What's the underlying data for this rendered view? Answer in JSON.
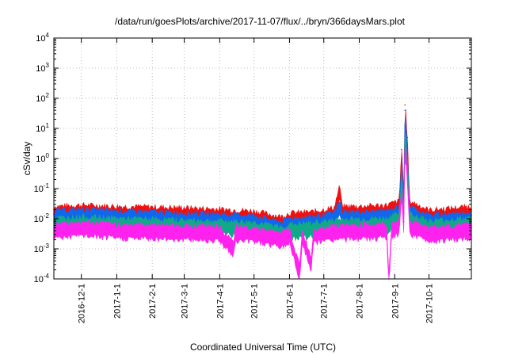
{
  "chart_data": {
    "type": "area",
    "title": "/data/run/goesPlots/archive/2017-11-07/flux/../bryn/366daysMars.plot",
    "xlabel": "Coordinated Universal Time (UTC)",
    "ylabel": "cSv/day",
    "y_scale": "log",
    "ylim": [
      0.0001,
      10000
    ],
    "y_ticks": [
      {
        "base": "10",
        "exp": "-4"
      },
      {
        "base": "10",
        "exp": "-3"
      },
      {
        "base": "10",
        "exp": "-2"
      },
      {
        "base": "10",
        "exp": "-1"
      },
      {
        "base": "10",
        "exp": "0"
      },
      {
        "base": "10",
        "exp": "1"
      },
      {
        "base": "10",
        "exp": "2"
      },
      {
        "base": "10",
        "exp": "3"
      },
      {
        "base": "10",
        "exp": "4"
      }
    ],
    "xlim": [
      "2016-11-07",
      "2017-11-07"
    ],
    "x_ticks": [
      "2016-12-1",
      "2017-1-1",
      "2017-2-1",
      "2017-3-1",
      "2017-4-1",
      "2017-5-1",
      "2017-6-1",
      "2017-7-1",
      "2017-8-1",
      "2017-9-1",
      "2017-10-1"
    ],
    "grid": true,
    "series": [
      {
        "color": "#ee1111",
        "points": [
          [
            "2016-11-07",
            0.02
          ],
          [
            "2016-12-01",
            0.022
          ],
          [
            "2017-01-01",
            0.02
          ],
          [
            "2017-02-01",
            0.019
          ],
          [
            "2017-03-01",
            0.018
          ],
          [
            "2017-04-01",
            0.016
          ],
          [
            "2017-05-01",
            0.014
          ],
          [
            "2017-05-25",
            0.009
          ],
          [
            "2017-06-01",
            0.012
          ],
          [
            "2017-06-20",
            0.013
          ],
          [
            "2017-07-10",
            0.018
          ],
          [
            "2017-07-15",
            0.1
          ],
          [
            "2017-07-17",
            0.02
          ],
          [
            "2017-08-01",
            0.02
          ],
          [
            "2017-08-25",
            0.022
          ],
          [
            "2017-09-05",
            0.03
          ],
          [
            "2017-09-07",
            2
          ],
          [
            "2017-09-09",
            0.05
          ],
          [
            "2017-09-10",
            60
          ],
          [
            "2017-09-12",
            5
          ],
          [
            "2017-09-14",
            0.03
          ],
          [
            "2017-10-01",
            0.015
          ],
          [
            "2017-11-07",
            0.02
          ]
        ]
      },
      {
        "color": "#1166ee",
        "points": [
          [
            "2016-11-07",
            0.014
          ],
          [
            "2016-12-01",
            0.016
          ],
          [
            "2017-01-01",
            0.014
          ],
          [
            "2017-02-01",
            0.013
          ],
          [
            "2017-03-01",
            0.012
          ],
          [
            "2017-04-01",
            0.011
          ],
          [
            "2017-05-01",
            0.01
          ],
          [
            "2017-05-25",
            0.006
          ],
          [
            "2017-06-01",
            0.008
          ],
          [
            "2017-06-20",
            0.009
          ],
          [
            "2017-07-10",
            0.012
          ],
          [
            "2017-07-15",
            0.03
          ],
          [
            "2017-07-17",
            0.013
          ],
          [
            "2017-08-01",
            0.013
          ],
          [
            "2017-08-25",
            0.014
          ],
          [
            "2017-09-05",
            0.02
          ],
          [
            "2017-09-07",
            0.9
          ],
          [
            "2017-09-09",
            0.03
          ],
          [
            "2017-09-10",
            40
          ],
          [
            "2017-09-12",
            2
          ],
          [
            "2017-09-14",
            0.02
          ],
          [
            "2017-10-01",
            0.01
          ],
          [
            "2017-11-07",
            0.013
          ]
        ]
      },
      {
        "color": "#11aa88",
        "points": [
          [
            "2016-11-07",
            0.008
          ],
          [
            "2016-12-01",
            0.009
          ],
          [
            "2017-01-01",
            0.008
          ],
          [
            "2017-02-01",
            0.0075
          ],
          [
            "2017-03-01",
            0.007
          ],
          [
            "2017-04-01",
            0.0065
          ],
          [
            "2017-05-01",
            0.006
          ],
          [
            "2017-05-25",
            0.004
          ],
          [
            "2017-06-01",
            0.005
          ],
          [
            "2017-06-20",
            0.0055
          ],
          [
            "2017-07-10",
            0.007
          ],
          [
            "2017-07-17",
            0.0075
          ],
          [
            "2017-08-01",
            0.0075
          ],
          [
            "2017-08-25",
            0.008
          ],
          [
            "2017-09-05",
            0.012
          ],
          [
            "2017-09-07",
            0.3
          ],
          [
            "2017-09-09",
            0.015
          ],
          [
            "2017-09-10",
            15
          ],
          [
            "2017-09-12",
            0.8
          ],
          [
            "2017-09-14",
            0.012
          ],
          [
            "2017-10-01",
            0.0065
          ],
          [
            "2017-11-07",
            0.008
          ]
        ]
      },
      {
        "color": "#ff22ee",
        "points": [
          [
            "2016-11-07",
            0.005
          ],
          [
            "2016-12-01",
            0.006
          ],
          [
            "2017-01-01",
            0.005
          ],
          [
            "2017-02-01",
            0.0048
          ],
          [
            "2017-03-01",
            0.0045
          ],
          [
            "2017-04-01",
            0.0042
          ],
          [
            "2017-04-13",
            0.0012
          ],
          [
            "2017-04-15",
            0.004
          ],
          [
            "2017-05-01",
            0.004
          ],
          [
            "2017-05-25",
            0.0025
          ],
          [
            "2017-06-01",
            0.0035
          ],
          [
            "2017-06-10",
            0.0002
          ],
          [
            "2017-06-12",
            0.0035
          ],
          [
            "2017-06-20",
            0.0004
          ],
          [
            "2017-06-22",
            0.0035
          ],
          [
            "2017-07-10",
            0.0045
          ],
          [
            "2017-08-01",
            0.0048
          ],
          [
            "2017-08-25",
            0.005
          ],
          [
            "2017-08-27",
            0.0001
          ],
          [
            "2017-08-29",
            0.005
          ],
          [
            "2017-09-05",
            0.007
          ],
          [
            "2017-09-07",
            0.1
          ],
          [
            "2017-09-09",
            0.008
          ],
          [
            "2017-09-10",
            5
          ],
          [
            "2017-09-12",
            0.3
          ],
          [
            "2017-09-14",
            0.007
          ],
          [
            "2017-10-01",
            0.004
          ],
          [
            "2017-11-07",
            0.005
          ]
        ]
      }
    ]
  }
}
